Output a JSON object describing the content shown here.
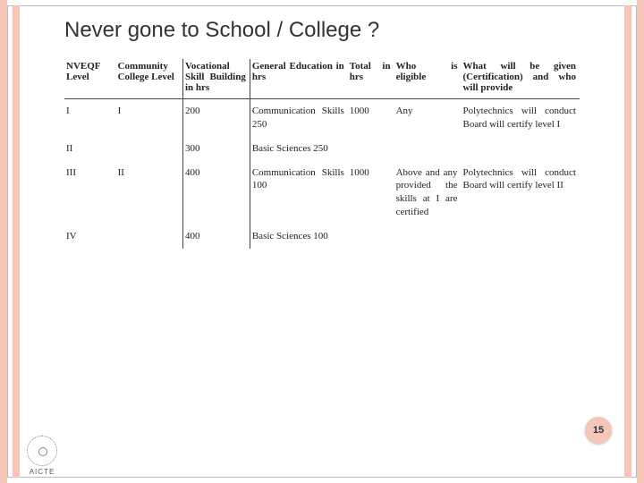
{
  "title": "Never gone to School / College ?",
  "page_number": "15",
  "logo_label": "AICTE",
  "table": {
    "headers": [
      "NVEQF Level",
      "Community College Level",
      "Vocational Skill Building in hrs",
      "General Education in hrs",
      "Total in hrs",
      "Who is eligible",
      "What will be given (Certification) and who will provide"
    ],
    "column_widths_pct": [
      10,
      13,
      13,
      19,
      9,
      13,
      23
    ],
    "rows": [
      [
        "I",
        "I",
        "200",
        "Communication Skills 250",
        "1000",
        "Any",
        "Polytechnics will conduct Board will certify level I"
      ],
      [
        "II",
        "",
        "300",
        "Basic Sciences 250",
        "",
        "",
        ""
      ],
      [
        "III",
        "II",
        "400",
        "Communication Skills 100",
        "1000",
        "Above and any provided the skills at I are certified",
        "Polytechnics will conduct Board will certify level II"
      ],
      [
        "IV",
        "",
        "400",
        "Basic Sciences 100",
        "",
        "",
        ""
      ]
    ],
    "vline_after_cols": [
      1,
      2
    ],
    "colors": {
      "text": "#222222",
      "border": "#444444",
      "background": "#ffffff"
    },
    "font_family": "Georgia, Times New Roman, serif",
    "font_size_pt": 8
  },
  "theme": {
    "stripe_color": "#f4c7b8",
    "title_color": "#333333",
    "title_font_family": "Arial, sans-serif",
    "title_font_size_pt": 18
  }
}
